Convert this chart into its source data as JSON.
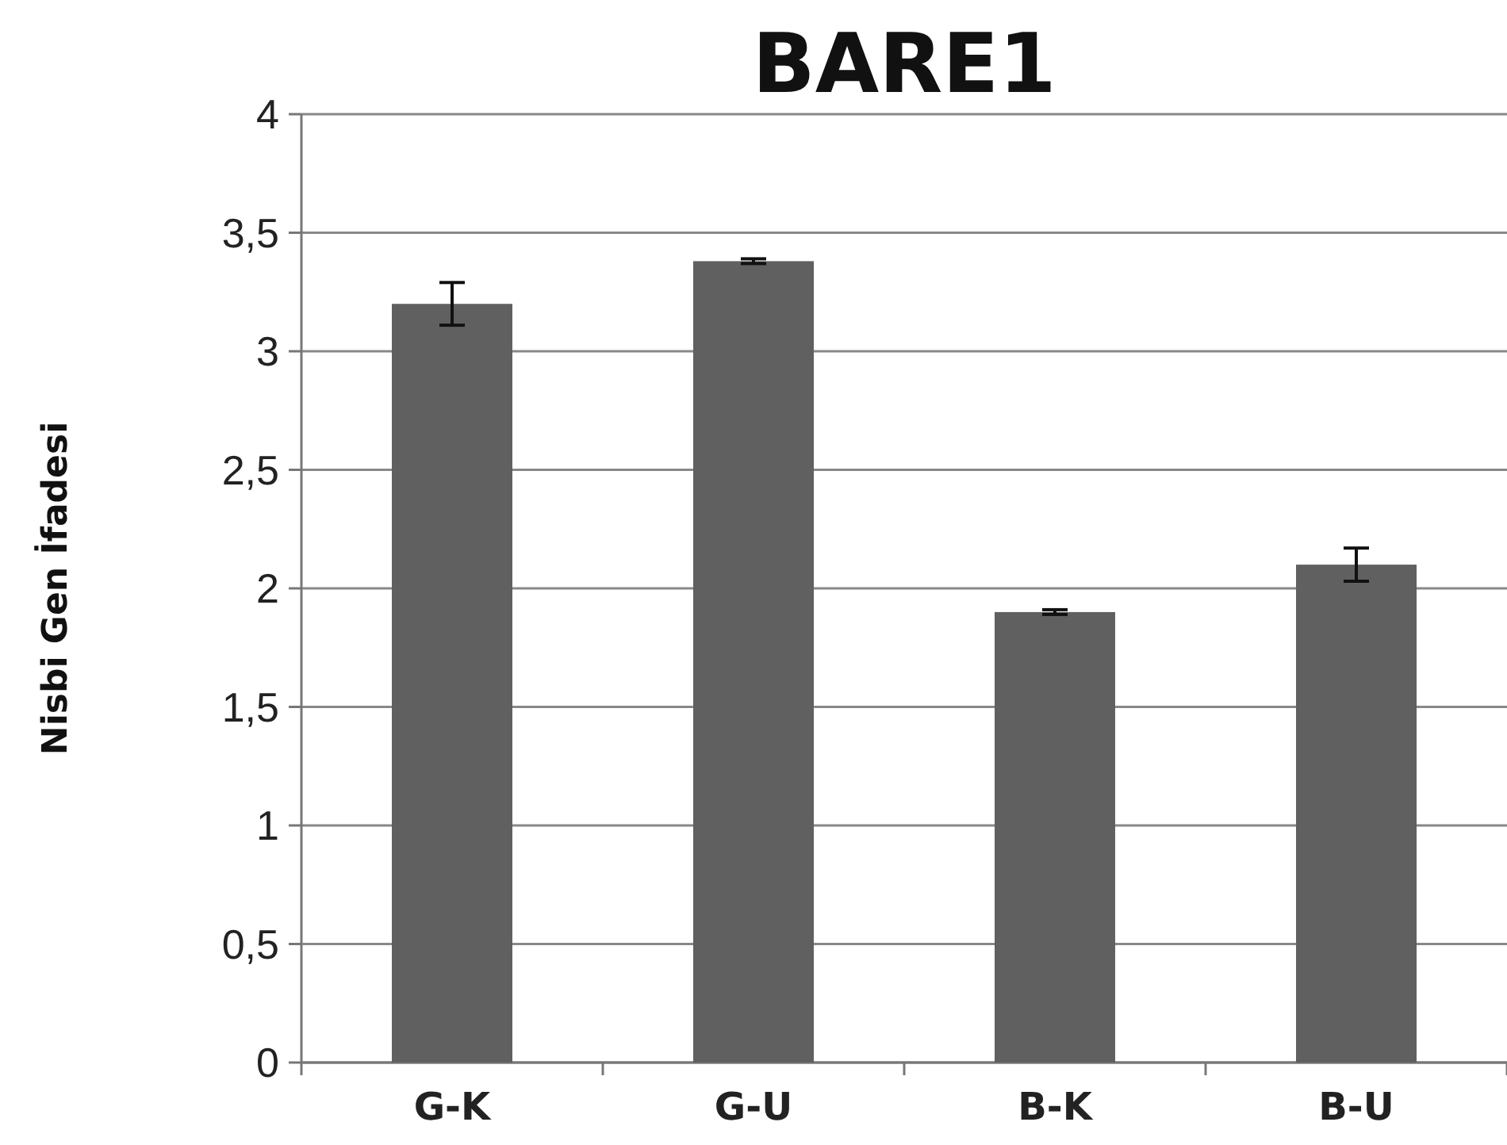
{
  "chart_data": {
    "type": "bar",
    "title": "BARE1",
    "ylabel": "Nisbi Gen İfadesi",
    "categories": [
      "G-K",
      "G-U",
      "B-K",
      "B-U"
    ],
    "values": [
      3.2,
      3.38,
      1.9,
      2.1
    ],
    "errors": [
      0.09,
      0.01,
      0.01,
      0.07
    ],
    "color": "#606060",
    "ylim": [
      0,
      4
    ],
    "yticks": [
      0,
      {
        "value": 0.5,
        "label": "0,5"
      },
      1,
      {
        "value": 1.5,
        "label": "1,5"
      },
      2,
      {
        "value": 2.5,
        "label": "2,5"
      },
      3,
      {
        "value": 3.5,
        "label": "3,5"
      },
      4
    ],
    "grid": "y"
  }
}
